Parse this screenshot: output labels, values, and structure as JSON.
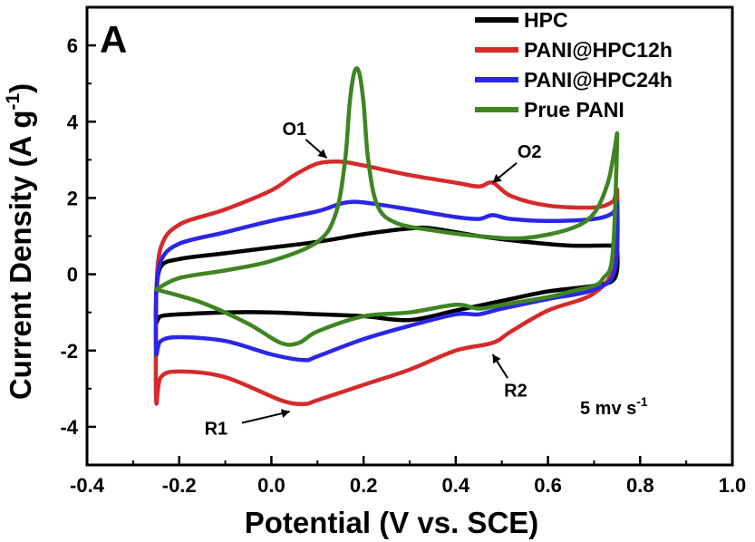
{
  "chart_data": {
    "type": "line",
    "panel_label": "A",
    "xlabel": "Potential (V vs. SCE)",
    "ylabel": "Current Density (A g",
    "ylabel_sup": "-1",
    "ylabel_close": ")",
    "xlim": [
      -0.4,
      1.0
    ],
    "ylim": [
      -5,
      7
    ],
    "xticks": [
      -0.4,
      -0.2,
      0.0,
      0.2,
      0.4,
      0.6,
      0.8,
      1.0
    ],
    "xtick_labels": [
      "-0.4",
      "-0.2",
      "0.0",
      "0.2",
      "0.4",
      "0.6",
      "0.8",
      "1.0"
    ],
    "yticks": [
      -4,
      -2,
      0,
      2,
      4,
      6
    ],
    "ytick_labels": [
      "-4",
      "-2",
      "0",
      "2",
      "4",
      "6"
    ],
    "grid": false,
    "legend_position": "top-right",
    "scan_rate_label": "5 mv s",
    "scan_rate_sup": "-1",
    "annotations": [
      {
        "text": "O1",
        "x": 0.05,
        "y": 3.65,
        "arrow_to": [
          0.12,
          3.05
        ]
      },
      {
        "text": "O2",
        "x": 0.56,
        "y": 3.05,
        "arrow_to": [
          0.48,
          2.4
        ]
      },
      {
        "text": "R1",
        "x": -0.12,
        "y": -4.2,
        "arrow_to": [
          0.04,
          -3.6
        ]
      },
      {
        "text": "R2",
        "x": 0.53,
        "y": -3.2,
        "arrow_to": [
          0.48,
          -2.1
        ]
      }
    ],
    "series": [
      {
        "name": "HPC",
        "color": "#000000",
        "x": [
          -0.25,
          -0.24,
          -0.2,
          -0.1,
          0.0,
          0.1,
          0.2,
          0.3,
          0.35,
          0.45,
          0.55,
          0.65,
          0.74,
          0.75,
          0.745,
          0.7,
          0.6,
          0.5,
          0.4,
          0.3,
          0.2,
          0.1,
          0.0,
          -0.1,
          -0.2,
          -0.24,
          -0.25,
          -0.25
        ],
        "y": [
          -0.5,
          0.2,
          0.4,
          0.55,
          0.7,
          0.85,
          1.05,
          1.2,
          1.2,
          1.0,
          0.85,
          0.75,
          0.75,
          0.65,
          -0.1,
          -0.3,
          -0.45,
          -0.7,
          -0.95,
          -1.2,
          -1.1,
          -1.05,
          -1.0,
          -1.0,
          -1.05,
          -1.1,
          -1.25,
          -0.5
        ]
      },
      {
        "name": "PANI@HPC12h",
        "color": "#d62a2a",
        "x": [
          -0.25,
          -0.24,
          -0.2,
          -0.1,
          0.0,
          0.05,
          0.1,
          0.15,
          0.2,
          0.3,
          0.4,
          0.45,
          0.48,
          0.52,
          0.6,
          0.7,
          0.74,
          0.75,
          0.745,
          0.7,
          0.6,
          0.52,
          0.48,
          0.4,
          0.3,
          0.2,
          0.1,
          0.07,
          0.02,
          -0.1,
          -0.2,
          -0.24,
          -0.25,
          -0.25
        ],
        "y": [
          -0.5,
          0.7,
          1.3,
          1.7,
          2.2,
          2.6,
          2.9,
          2.95,
          2.85,
          2.6,
          2.4,
          2.3,
          2.4,
          2.05,
          1.8,
          1.75,
          1.9,
          2.15,
          0.3,
          -0.5,
          -0.95,
          -1.5,
          -1.8,
          -2.0,
          -2.5,
          -2.9,
          -3.3,
          -3.4,
          -3.3,
          -2.7,
          -2.55,
          -2.7,
          -3.3,
          -0.5
        ]
      },
      {
        "name": "PANI@HPC24h",
        "color": "#2b26e6",
        "x": [
          -0.25,
          -0.24,
          -0.2,
          -0.1,
          0.0,
          0.1,
          0.15,
          0.18,
          0.22,
          0.3,
          0.4,
          0.45,
          0.48,
          0.52,
          0.6,
          0.7,
          0.74,
          0.75,
          0.745,
          0.7,
          0.6,
          0.5,
          0.45,
          0.4,
          0.3,
          0.2,
          0.1,
          0.07,
          0.0,
          -0.1,
          -0.2,
          -0.24,
          -0.25,
          -0.25
        ],
        "y": [
          -0.5,
          0.35,
          0.8,
          1.1,
          1.4,
          1.65,
          1.85,
          1.9,
          1.85,
          1.7,
          1.5,
          1.45,
          1.55,
          1.45,
          1.4,
          1.45,
          1.6,
          1.8,
          0.1,
          -0.4,
          -0.65,
          -0.9,
          -1.05,
          -1.05,
          -1.35,
          -1.7,
          -2.15,
          -2.25,
          -2.1,
          -1.75,
          -1.65,
          -1.75,
          -2.05,
          -0.5
        ]
      },
      {
        "name": "Prue PANI",
        "color": "#3f8522",
        "x": [
          -0.25,
          -0.2,
          -0.1,
          0.0,
          0.1,
          0.14,
          0.16,
          0.17,
          0.18,
          0.19,
          0.2,
          0.21,
          0.23,
          0.27,
          0.35,
          0.45,
          0.55,
          0.65,
          0.7,
          0.73,
          0.745,
          0.75,
          0.74,
          0.72,
          0.7,
          0.65,
          0.6,
          0.5,
          0.45,
          0.4,
          0.3,
          0.2,
          0.1,
          0.06,
          0.02,
          -0.05,
          -0.15,
          -0.25
        ],
        "y": [
          -0.4,
          -0.1,
          0.1,
          0.35,
          0.85,
          1.6,
          3.0,
          4.5,
          5.3,
          5.3,
          4.5,
          3.0,
          1.8,
          1.35,
          1.15,
          1.0,
          0.95,
          1.2,
          1.6,
          2.4,
          3.3,
          3.5,
          0.5,
          -0.1,
          -0.3,
          -0.45,
          -0.6,
          -0.8,
          -0.9,
          -0.8,
          -1.0,
          -1.1,
          -1.5,
          -1.8,
          -1.8,
          -1.3,
          -0.75,
          -0.4
        ]
      }
    ]
  }
}
